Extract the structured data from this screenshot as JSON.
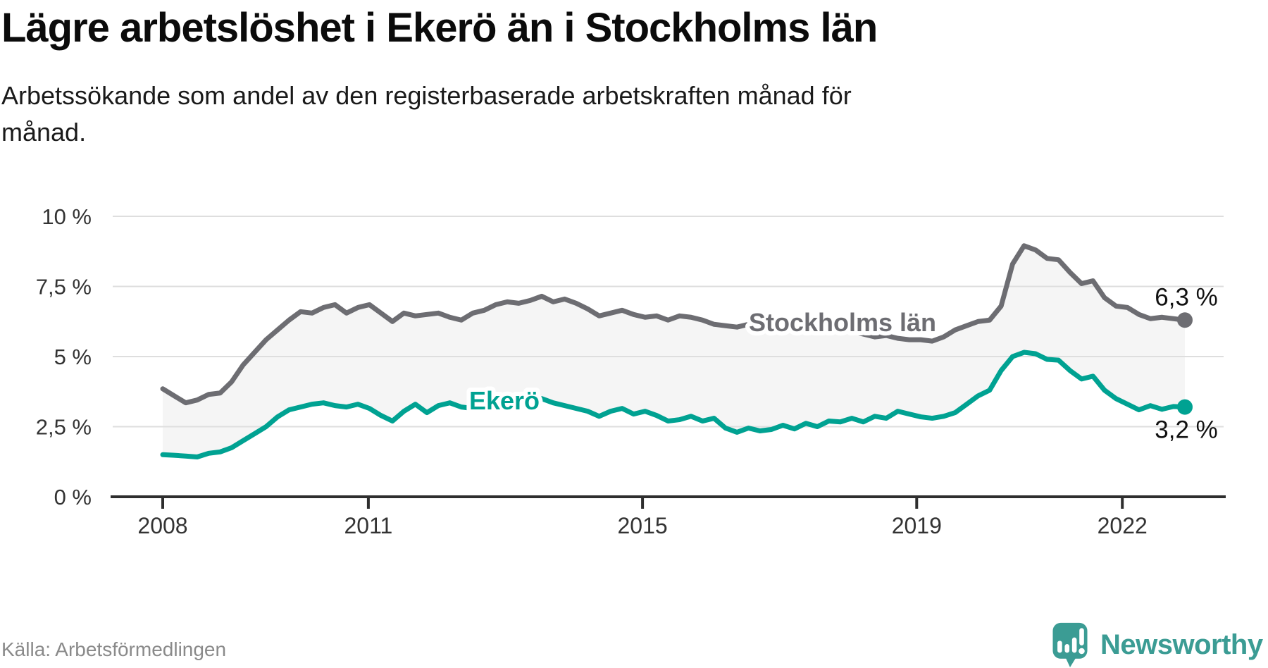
{
  "header": {
    "title": "Lägre arbetslöshet i Ekerö än i Stockholms län",
    "subtitle_lines": [
      "Arbetssökande som andel av den registerbaserade arbetskraften månad för",
      "månad."
    ]
  },
  "source": {
    "label": "Källa: Arbetsförmedlingen"
  },
  "brand": {
    "name": "Newsworthy",
    "color": "#3b9c94"
  },
  "chart_data": {
    "type": "line",
    "title": "Lägre arbetslöshet i Ekerö än i Stockholms län",
    "x_label": "",
    "y_label": "",
    "x_range": [
      "2008-01",
      "2022-11"
    ],
    "points_per_year": 6,
    "ylim": [
      0,
      10
    ],
    "grid": "horizontal",
    "legend_position": "labels-on-lines",
    "colors": {
      "grid": "#dedede",
      "axis": "#2e2e2e",
      "tick_text": "#333333",
      "fill_between": "#f5f5f5",
      "value_label": "#111111"
    },
    "y_ticks": [
      {
        "label": "10 %",
        "value": 10
      },
      {
        "label": "7,5 %",
        "value": 7.5
      },
      {
        "label": "5 %",
        "value": 5
      },
      {
        "label": "2,5 %",
        "value": 2.5
      },
      {
        "label": "0 %",
        "value": 0
      }
    ],
    "x_ticks": [
      {
        "label": "2008",
        "year": 2008
      },
      {
        "label": "2011",
        "year": 2011
      },
      {
        "label": "2015",
        "year": 2015
      },
      {
        "label": "2019",
        "year": 2019
      },
      {
        "label": "2022",
        "year": 2022
      }
    ],
    "series": [
      {
        "name": "Stockholms län",
        "color": "#6d6d72",
        "end_label": "6,3 %",
        "end_value": 6.3,
        "values": [
          3.85,
          3.6,
          3.35,
          3.45,
          3.65,
          3.7,
          4.1,
          4.7,
          5.15,
          5.6,
          5.95,
          6.3,
          6.6,
          6.55,
          6.75,
          6.85,
          6.55,
          6.75,
          6.85,
          6.55,
          6.25,
          6.55,
          6.45,
          6.5,
          6.55,
          6.4,
          6.3,
          6.55,
          6.65,
          6.85,
          6.95,
          6.9,
          7.0,
          7.15,
          6.95,
          7.05,
          6.9,
          6.7,
          6.45,
          6.55,
          6.65,
          6.5,
          6.4,
          6.45,
          6.3,
          6.45,
          6.4,
          6.3,
          6.15,
          6.1,
          6.05,
          6.15,
          6.1,
          6.05,
          6.0,
          6.0,
          5.95,
          6.05,
          6.0,
          5.95,
          5.9,
          5.8,
          5.7,
          5.75,
          5.65,
          5.6,
          5.6,
          5.55,
          5.7,
          5.95,
          6.1,
          6.25,
          6.3,
          6.8,
          8.3,
          8.95,
          8.8,
          8.5,
          8.45,
          8.0,
          7.6,
          7.7,
          7.1,
          6.8,
          6.75,
          6.5,
          6.35,
          6.4,
          6.35,
          6.3
        ]
      },
      {
        "name": "Ekerö",
        "color": "#00a292",
        "end_label": "3,2 %",
        "end_value": 3.2,
        "values": [
          1.5,
          1.48,
          1.45,
          1.42,
          1.55,
          1.6,
          1.75,
          2.0,
          2.25,
          2.5,
          2.85,
          3.1,
          3.2,
          3.3,
          3.35,
          3.25,
          3.2,
          3.3,
          3.15,
          2.9,
          2.7,
          3.05,
          3.3,
          3.0,
          3.25,
          3.35,
          3.2,
          3.15,
          3.2,
          3.3,
          3.25,
          3.3,
          3.45,
          3.5,
          3.35,
          3.25,
          3.15,
          3.05,
          2.87,
          3.05,
          3.15,
          2.95,
          3.05,
          2.9,
          2.7,
          2.75,
          2.87,
          2.7,
          2.8,
          2.45,
          2.3,
          2.45,
          2.35,
          2.4,
          2.55,
          2.42,
          2.62,
          2.5,
          2.7,
          2.67,
          2.8,
          2.67,
          2.87,
          2.8,
          3.05,
          2.95,
          2.85,
          2.8,
          2.87,
          3.0,
          3.3,
          3.6,
          3.8,
          4.5,
          5.0,
          5.15,
          5.1,
          4.9,
          4.87,
          4.5,
          4.2,
          4.3,
          3.8,
          3.5,
          3.3,
          3.1,
          3.25,
          3.12,
          3.22,
          3.2
        ]
      }
    ]
  }
}
